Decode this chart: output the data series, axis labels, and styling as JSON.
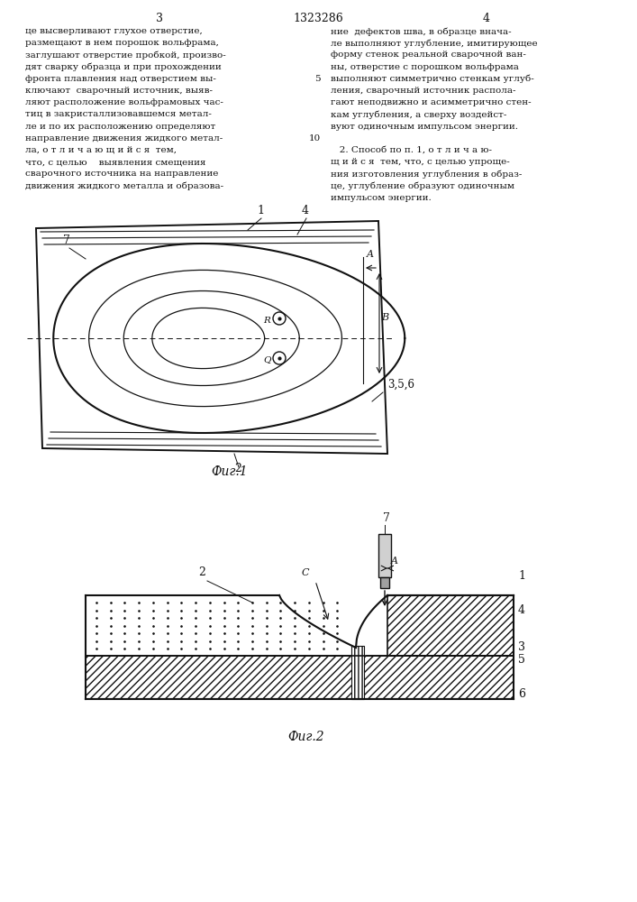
{
  "bg_color": "#ffffff",
  "text_color": "#111111",
  "line_color": "#111111",
  "page_title": "1323286",
  "page_num_left": "3",
  "page_num_right": "4",
  "left_col": [
    "це высверливают глухое отверстие,",
    "размещают в нем порошок вольфрама,",
    "заглушают отверстие пробкой, произво-",
    "дят сварку образца и при прохождении",
    "фронта плавления над отверстием вы-",
    "ключают  сварочный источник, выяв-",
    "ляют расположение вольфрамовых час-",
    "тиц в закристаллизовавшемся метал-",
    "ле и по их расположению определяют",
    "направление движения жидкого метал-",
    "ла, о т л и ч а ю щ и й с я  тем,",
    "что, с целью    выявления смещения",
    "сварочного источника на направление",
    "движения жидкого металла и образова-"
  ],
  "right_col": [
    "ние  дефектов шва, в образце внача-",
    "ле выполняют углубление, имитирующее",
    "форму стенок реальной сварочной ван-",
    "ны, отверстие с порошком вольфрама",
    "выполняют симметрично стенкам углуб-",
    "ления, сварочный источник распола-",
    "гают неподвижно и асимметрично стен-",
    "кам углубления, а сверху воздейст-",
    "вуют одиночным импульсом энергии.",
    "",
    "   2. Способ по п. 1, о т л и ч а ю-",
    "щ и й с я  тем, что, с целью упроще-",
    "ния изготовления углубления в образ-",
    "це, углубление образуют одиночным",
    "импульсом энергии."
  ],
  "fig1_caption": "Фиг.1",
  "fig2_caption": "Фиг.2"
}
